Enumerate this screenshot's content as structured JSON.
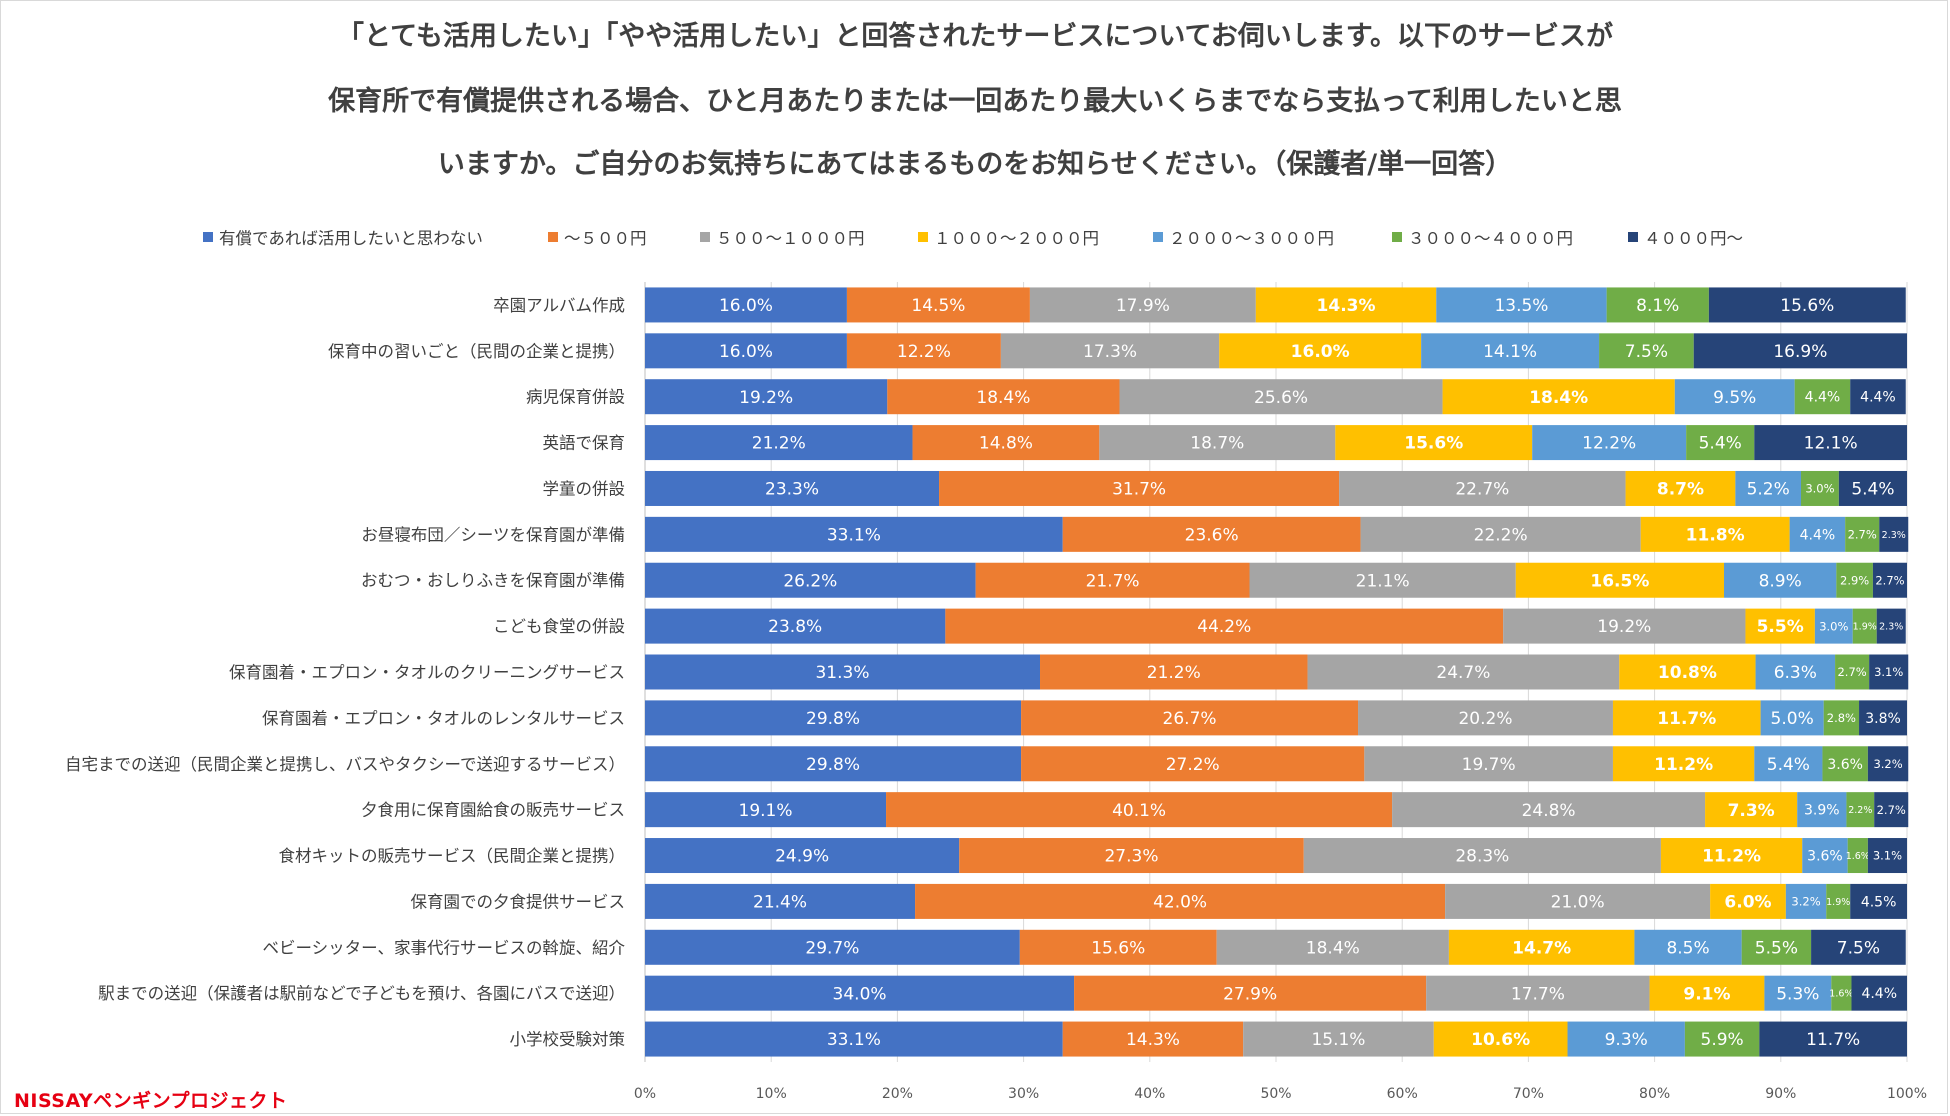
{
  "title_lines": [
    "「とても活用したい」「やや活用したい」と回答されたサービスについてお伺いします。以下のサービスが",
    "保育所で有償提供される場合、ひと月あたりまたは一回あたり最大いくらまでなら支払って利用したいと思",
    "いますか。ご自分のお気持ちにあてはまるものをお知らせください。（保護者/単一回答）"
  ],
  "logo": "NISSAYペンギンプロジェクト",
  "chart_data": {
    "type": "bar",
    "orientation": "horizontal",
    "stacked": "percent",
    "xlim": [
      0,
      100
    ],
    "x_ticks": [
      "0%",
      "10%",
      "20%",
      "30%",
      "40%",
      "50%",
      "60%",
      "70%",
      "80%",
      "90%",
      "100%"
    ],
    "grid": true,
    "legend_position": "top",
    "categories": [
      "卒園アルバム作成",
      "保育中の習いごと（民間の企業と提携）",
      "病児保育併設",
      "英語で保育",
      "学童の併設",
      "お昼寝布団／シーツを保育園が準備",
      "おむつ・おしりふきを保育園が準備",
      "こども食堂の併設",
      "保育園着・エプロン・タオルのクリーニングサービス",
      "保育園着・エプロン・タオルのレンタルサービス",
      "自宅までの送迎（民間企業と提携し、バスやタクシーで送迎するサービス）",
      "夕食用に保育園給食の販売サービス",
      "食材キットの販売サービス（民間企業と提携）",
      "保育園での夕食提供サービス",
      "ベビーシッター、家事代行サービスの斡旋、紹介",
      "駅までの送迎（保護者は駅前などで子どもを預け、各園にバスで送迎）",
      "小学校受験対策"
    ],
    "series": [
      {
        "name": "有償であれば活用したいと思わない",
        "color": "#4472c4",
        "label_color": "#ffffff",
        "values": [
          16.0,
          16.0,
          19.2,
          21.2,
          23.3,
          33.1,
          26.2,
          23.8,
          31.3,
          29.8,
          29.8,
          19.1,
          24.9,
          21.4,
          29.7,
          34.0,
          33.1
        ]
      },
      {
        "name": "～５００円",
        "color": "#ed7d31",
        "label_color": "#ffffff",
        "values": [
          14.5,
          12.2,
          18.4,
          14.8,
          31.7,
          23.6,
          21.7,
          44.2,
          21.2,
          26.7,
          27.2,
          40.1,
          27.3,
          42.0,
          15.6,
          27.9,
          14.3
        ]
      },
      {
        "name": "５００～１０００円",
        "color": "#a5a5a5",
        "label_color": "#ffffff",
        "values": [
          17.9,
          17.3,
          25.6,
          18.7,
          22.7,
          22.2,
          21.1,
          19.2,
          24.7,
          20.2,
          19.7,
          24.8,
          28.3,
          21.0,
          18.4,
          17.7,
          15.1
        ]
      },
      {
        "name": "１０００～２０００円",
        "color": "#ffc000",
        "label_color": "#ffffff",
        "values": [
          14.3,
          16.0,
          18.4,
          15.6,
          8.7,
          11.8,
          16.5,
          5.5,
          10.8,
          11.7,
          11.2,
          7.3,
          11.2,
          6.0,
          14.7,
          9.1,
          10.6
        ]
      },
      {
        "name": "２０００～３０００円",
        "color": "#5b9bd5",
        "label_color": "#ffffff",
        "values": [
          13.5,
          14.1,
          9.5,
          12.2,
          5.2,
          4.4,
          8.9,
          3.0,
          6.3,
          5.0,
          5.4,
          3.9,
          3.6,
          3.2,
          8.5,
          5.3,
          9.3
        ]
      },
      {
        "name": "３０００～４０００円",
        "color": "#70ad47",
        "label_color": "#ffffff",
        "values": [
          8.1,
          7.5,
          4.4,
          5.4,
          3.0,
          2.7,
          2.9,
          1.9,
          2.7,
          2.8,
          3.6,
          2.2,
          1.6,
          1.9,
          5.5,
          1.6,
          5.9
        ]
      },
      {
        "name": "４０００円～",
        "color": "#264478",
        "label_color": "#ffffff",
        "values": [
          15.6,
          16.9,
          4.4,
          12.1,
          5.4,
          2.3,
          2.7,
          2.3,
          3.1,
          3.8,
          3.2,
          2.7,
          3.1,
          4.5,
          7.5,
          4.4,
          11.7
        ]
      }
    ]
  }
}
